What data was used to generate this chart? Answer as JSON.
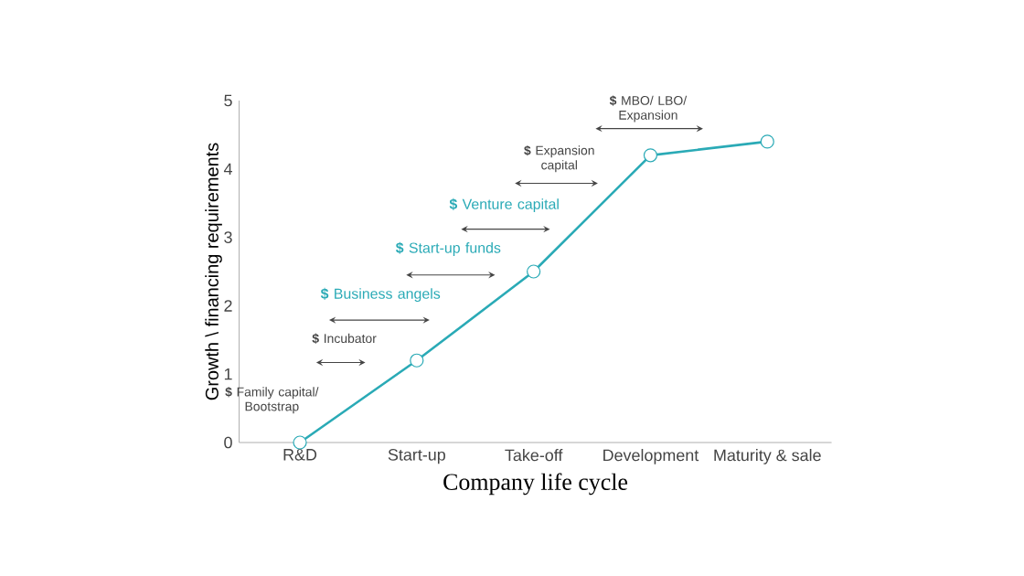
{
  "chart_data": {
    "type": "line",
    "xlabel": "Company life cycle",
    "ylabel": "Growth \\ financing requirements",
    "categories": [
      "R&D",
      "Start-up",
      "Take-off",
      "Development",
      "Maturity & sale"
    ],
    "series": [
      {
        "color": "#2aaab6",
        "values": [
          0,
          1.2,
          2.5,
          4.2,
          4.4
        ]
      }
    ],
    "ylim": [
      0,
      5
    ],
    "yticks": [
      0,
      1,
      2,
      3,
      4,
      5
    ],
    "marker": "circle",
    "line_style": "solid",
    "annotations": [
      "**$** Family capital/ Bootstrap",
      "**$** Incubator",
      "**$** Business angels",
      "**$** Start-up funds",
      "**$** Venture capital",
      "**$** Expansion capital",
      "**$** MBO/ LBO/ Expansion"
    ]
  }
}
